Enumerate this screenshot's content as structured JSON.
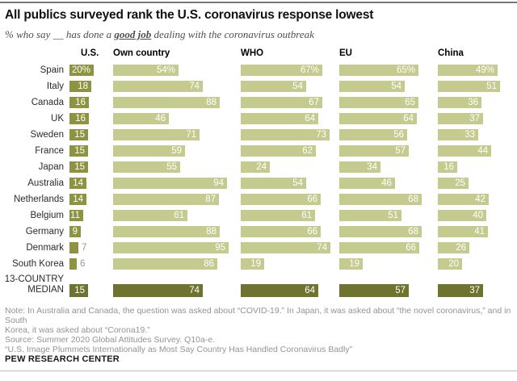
{
  "header": {
    "title": "All publics surveyed rank the U.S. coronavirus response lowest",
    "subtitle_prefix": "% who say __ has done a ",
    "subtitle_bold": "good job",
    "subtitle_suffix": " dealing with the coronavirus outbreak"
  },
  "chart_data": {
    "type": "bar",
    "orientation": "horizontal",
    "xlim": [
      0,
      100
    ],
    "unit": "%",
    "columns": [
      "U.S.",
      "Own country",
      "WHO",
      "EU",
      "China"
    ],
    "rows": [
      {
        "label": "Spain",
        "values": [
          20,
          54,
          67,
          65,
          49
        ],
        "suffix": "%"
      },
      {
        "label": "Italy",
        "values": [
          18,
          74,
          54,
          54,
          51
        ],
        "suffix": ""
      },
      {
        "label": "Canada",
        "values": [
          16,
          88,
          67,
          65,
          36
        ],
        "suffix": ""
      },
      {
        "label": "UK",
        "values": [
          16,
          46,
          64,
          64,
          37
        ],
        "suffix": ""
      },
      {
        "label": "Sweden",
        "values": [
          15,
          71,
          73,
          56,
          33
        ],
        "suffix": ""
      },
      {
        "label": "France",
        "values": [
          15,
          59,
          62,
          57,
          44
        ],
        "suffix": ""
      },
      {
        "label": "Japan",
        "values": [
          15,
          55,
          24,
          34,
          16
        ],
        "suffix": ""
      },
      {
        "label": "Australia",
        "values": [
          14,
          94,
          54,
          46,
          25
        ],
        "suffix": ""
      },
      {
        "label": "Netherlands",
        "values": [
          14,
          87,
          66,
          68,
          42
        ],
        "suffix": ""
      },
      {
        "label": "Belgium",
        "values": [
          11,
          61,
          61,
          51,
          40
        ],
        "suffix": ""
      },
      {
        "label": "Germany",
        "values": [
          9,
          88,
          66,
          68,
          41
        ],
        "suffix": ""
      },
      {
        "label": "Denmark",
        "values": [
          7,
          95,
          74,
          66,
          26
        ],
        "suffix": ""
      },
      {
        "label": "South Korea",
        "values": [
          6,
          86,
          19,
          19,
          20
        ],
        "suffix": ""
      }
    ],
    "median": {
      "label": "13-COUNTRY MEDIAN",
      "values": [
        15,
        74,
        64,
        57,
        37
      ]
    },
    "colors": {
      "us_bar": "#8e9342",
      "other_bar": "#c5ca8f",
      "median_bar": "#6e7430",
      "outside_value_label": "#999999",
      "inside_value_label": "#ffffff"
    }
  },
  "footer": {
    "note_lines": [
      "Note: In Australia and Canada, the question was asked about “COVID-19.” In Japan, it was asked about “the novel coronavirus,” and in South",
      "Korea, it was asked about “Corona19.”"
    ],
    "source": "Source: Summer 2020 Global Attitudes Survey. Q10a-e.",
    "report_title": "“U.S. Image Plummets Internationally as Most Say Country Has Handled Coronavirus Badly”",
    "brand": "PEW RESEARCH CENTER"
  }
}
